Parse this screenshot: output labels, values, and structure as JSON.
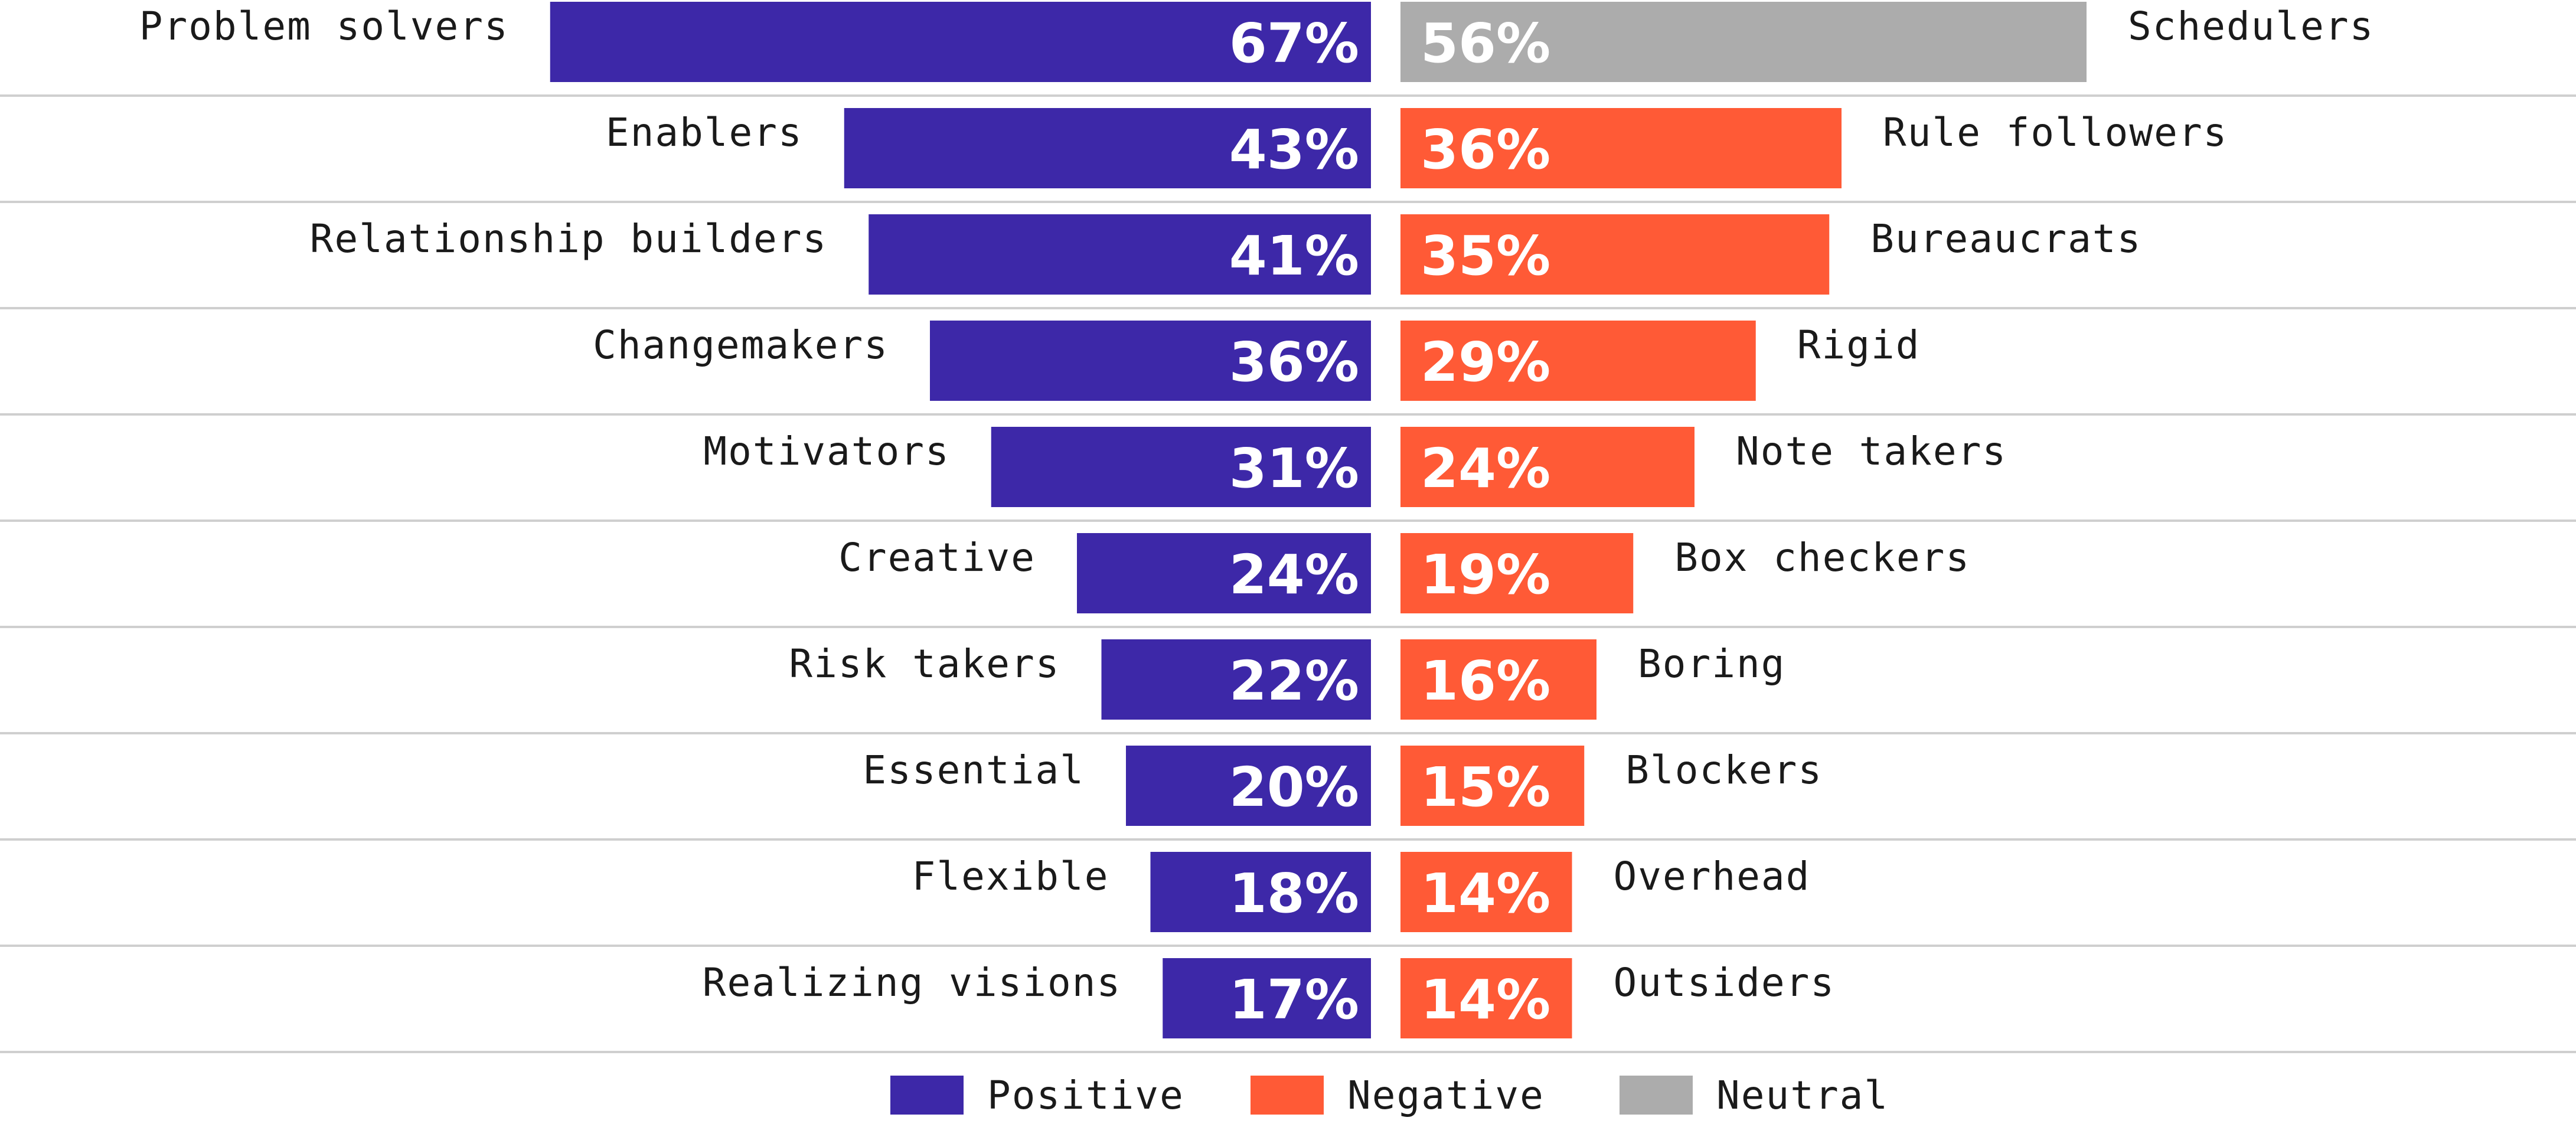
{
  "colors": {
    "positive": "#3d28a8",
    "negative": "#ff5a36",
    "neutral": "#acacac"
  },
  "chart_data": {
    "type": "bar",
    "orientation": "horizontal-diverging",
    "grid": false,
    "legend_position": "bottom-center",
    "value_range": [
      0,
      67
    ],
    "rows": [
      {
        "left_label": "Problem solvers",
        "left_value": 67,
        "left_display": "67%",
        "left_type": "Positive",
        "right_label": "Schedulers",
        "right_value": 56,
        "right_display": "56%",
        "right_type": "Neutral"
      },
      {
        "left_label": "Enablers",
        "left_value": 43,
        "left_display": "43%",
        "left_type": "Positive",
        "right_label": "Rule followers",
        "right_value": 36,
        "right_display": "36%",
        "right_type": "Negative"
      },
      {
        "left_label": "Relationship builders",
        "left_value": 41,
        "left_display": "41%",
        "left_type": "Positive",
        "right_label": "Bureaucrats",
        "right_value": 35,
        "right_display": "35%",
        "right_type": "Negative"
      },
      {
        "left_label": "Changemakers",
        "left_value": 36,
        "left_display": "36%",
        "left_type": "Positive",
        "right_label": "Rigid",
        "right_value": 29,
        "right_display": "29%",
        "right_type": "Negative"
      },
      {
        "left_label": "Motivators",
        "left_value": 31,
        "left_display": "31%",
        "left_type": "Positive",
        "right_label": "Note takers",
        "right_value": 24,
        "right_display": "24%",
        "right_type": "Negative"
      },
      {
        "left_label": "Creative",
        "left_value": 24,
        "left_display": "24%",
        "left_type": "Positive",
        "right_label": "Box checkers",
        "right_value": 19,
        "right_display": "19%",
        "right_type": "Negative"
      },
      {
        "left_label": "Risk takers",
        "left_value": 22,
        "left_display": "22%",
        "left_type": "Positive",
        "right_label": "Boring",
        "right_value": 16,
        "right_display": "16%",
        "right_type": "Negative"
      },
      {
        "left_label": "Essential",
        "left_value": 20,
        "left_display": "20%",
        "left_type": "Positive",
        "right_label": "Blockers",
        "right_value": 15,
        "right_display": "15%",
        "right_type": "Negative"
      },
      {
        "left_label": "Flexible",
        "left_value": 18,
        "left_display": "18%",
        "left_type": "Positive",
        "right_label": "Overhead",
        "right_value": 14,
        "right_display": "14%",
        "right_type": "Negative"
      },
      {
        "left_label": "Realizing visions",
        "left_value": 17,
        "left_display": "17%",
        "left_type": "Positive",
        "right_label": "Outsiders",
        "right_value": 14,
        "right_display": "14%",
        "right_type": "Negative"
      }
    ],
    "legend": [
      {
        "label": "Positive",
        "type": "Positive"
      },
      {
        "label": "Negative",
        "type": "Negative"
      },
      {
        "label": "Neutral",
        "type": "Neutral"
      }
    ]
  }
}
